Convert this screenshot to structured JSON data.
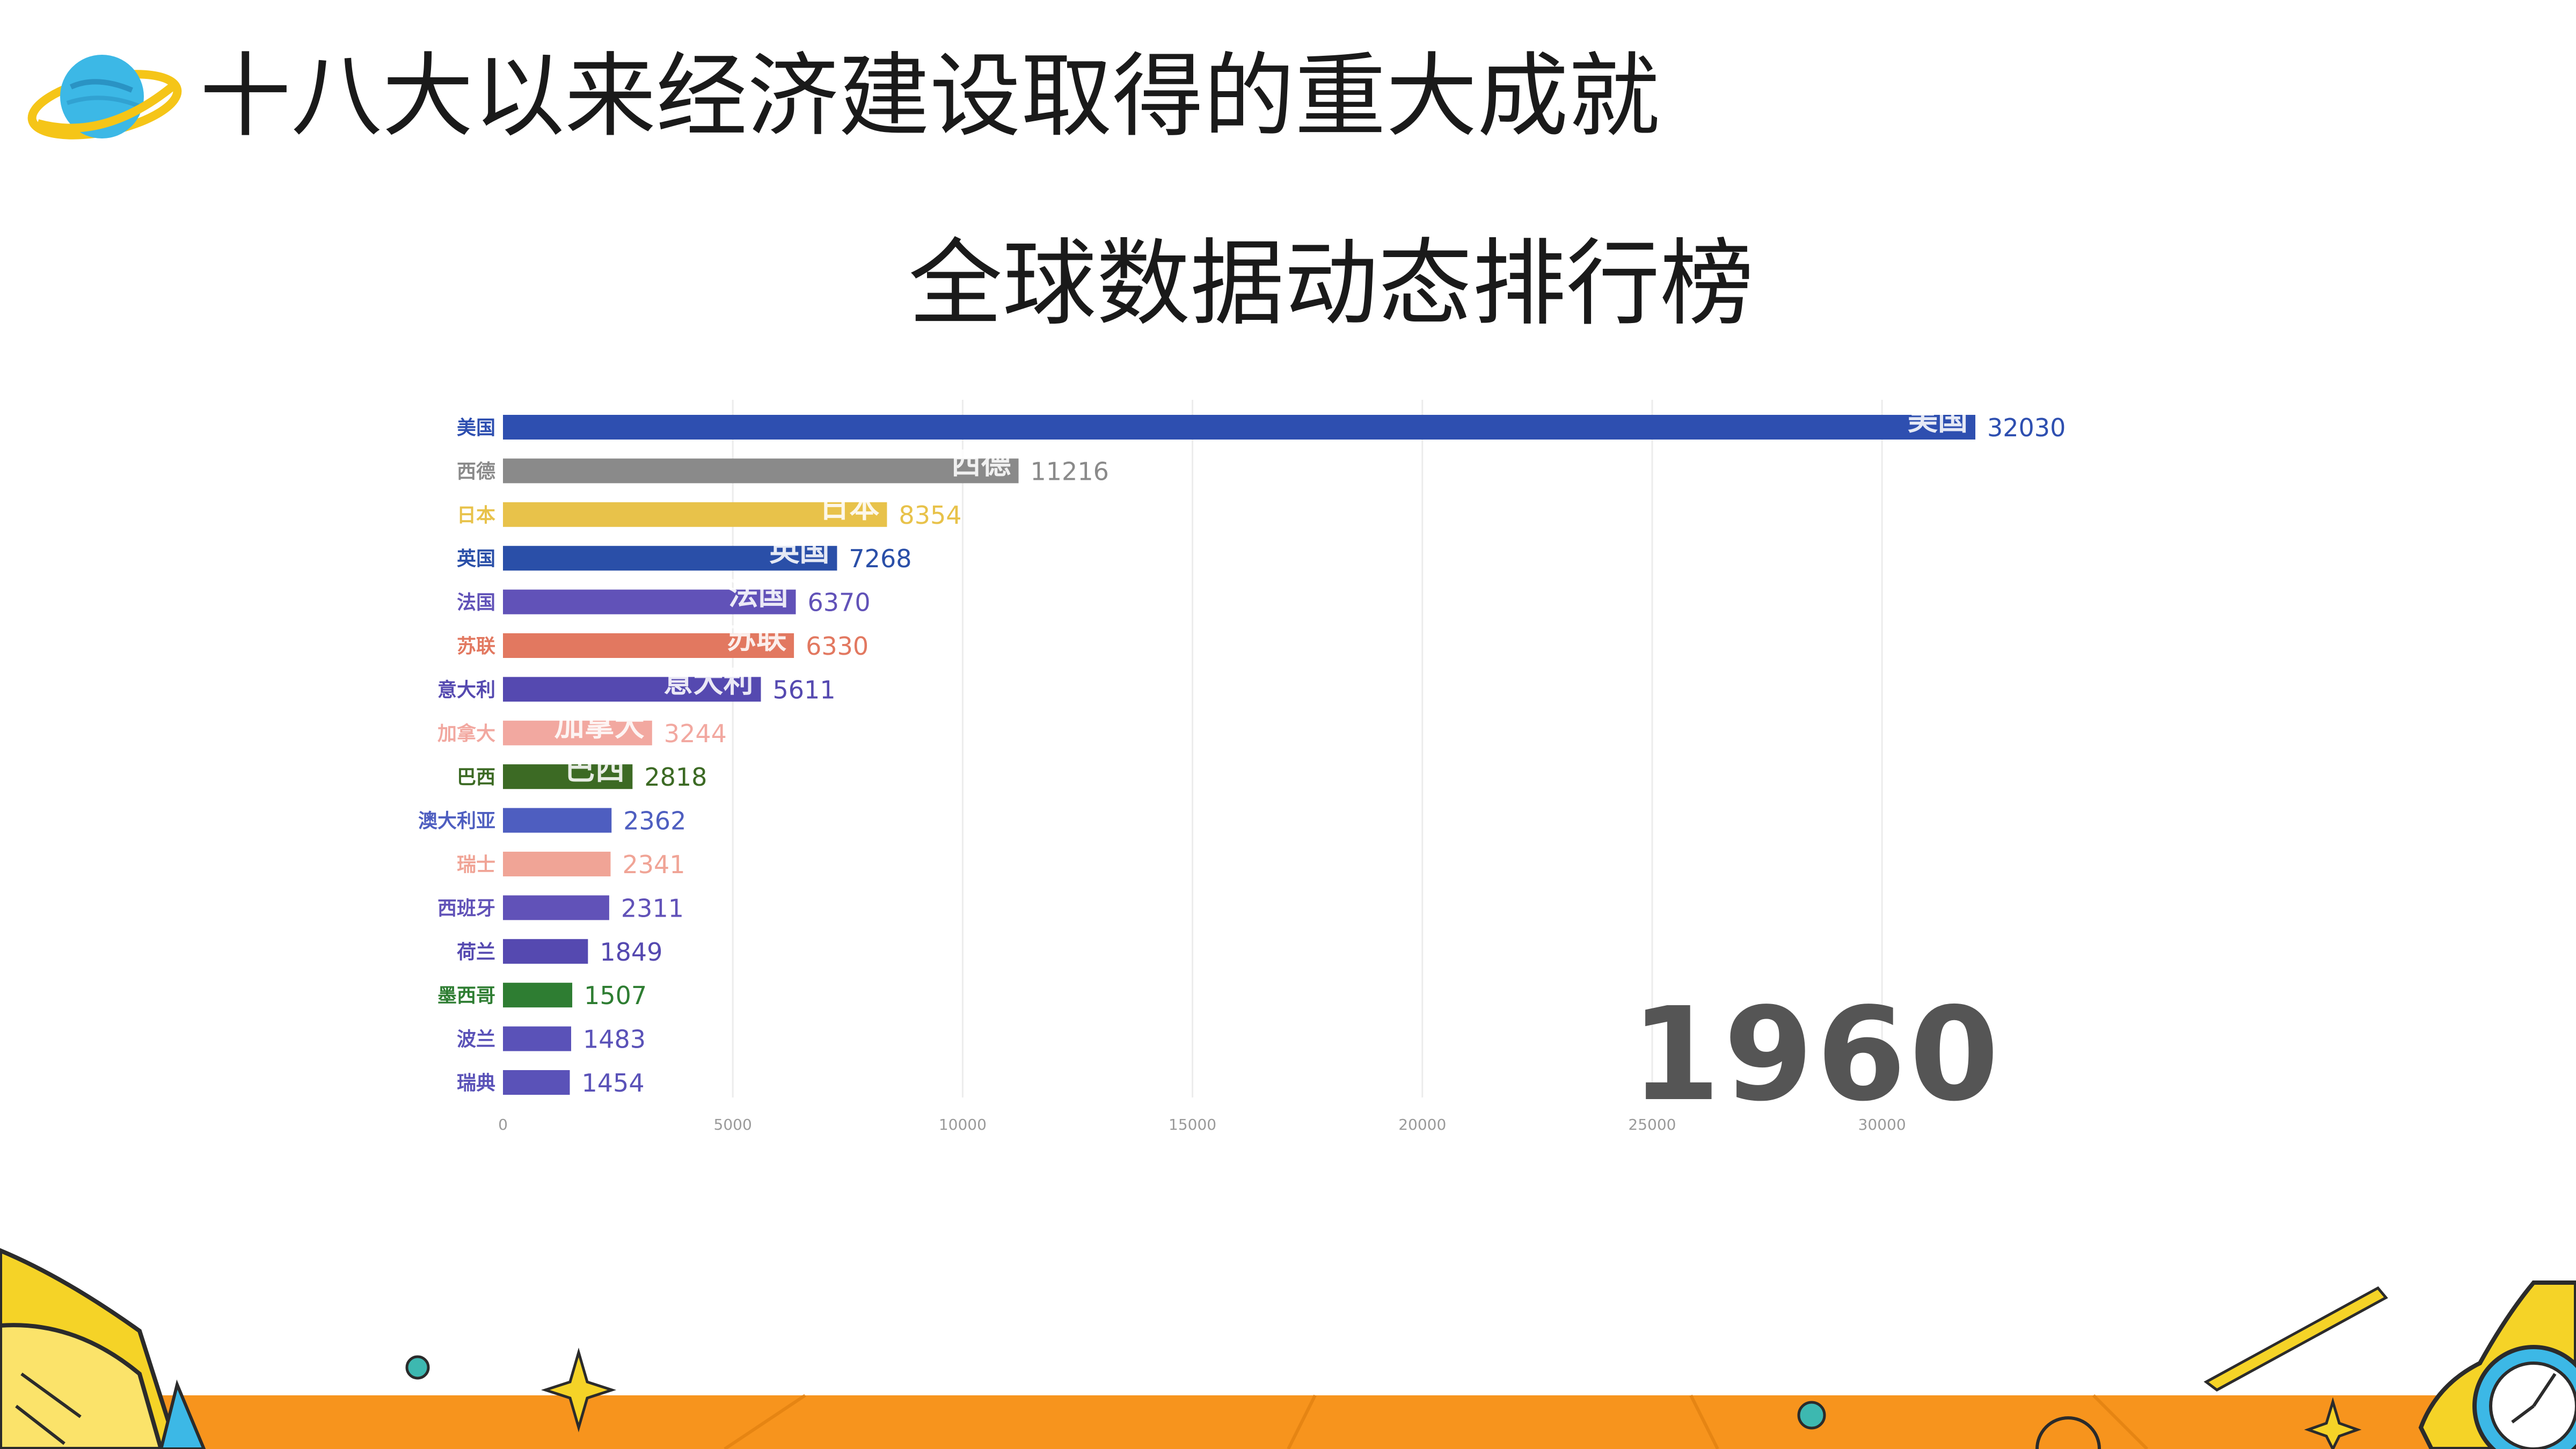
{
  "page": {
    "title": "十八大以来经济建设取得的重大成就"
  },
  "colors": {
    "footer_orange": "#f7941d",
    "accent_yellow": "#f5d327",
    "planet_blue": "#3cb8e6",
    "teal_dot": "#3db8b0"
  },
  "chart_data": {
    "type": "bar",
    "orientation": "horizontal",
    "title": "全球数据动态排行榜",
    "year_label": "1960",
    "xlim": [
      0,
      32030
    ],
    "x_ticks": [
      0,
      5000,
      10000,
      15000,
      20000,
      25000,
      30000
    ],
    "grid": true,
    "categories": [
      "美国",
      "西德",
      "日本",
      "英国",
      "法国",
      "苏联",
      "意大利",
      "加拿大",
      "巴西",
      "澳大利亚",
      "瑞士",
      "西班牙",
      "荷兰",
      "墨西哥",
      "波兰",
      "瑞典"
    ],
    "values": [
      32030,
      11216,
      8354,
      7268,
      6370,
      6330,
      5611,
      3244,
      2818,
      2362,
      2341,
      2311,
      1849,
      1507,
      1483,
      1454
    ],
    "colors": [
      "#2e4fb0",
      "#8a8a8a",
      "#e8c24a",
      "#2a4fa8",
      "#6152b8",
      "#e27860",
      "#5549b0",
      "#f2a8a0",
      "#3c6a24",
      "#4e5ec0",
      "#f0a496",
      "#6152b8",
      "#5549b0",
      "#2e7d32",
      "#5a52b8",
      "#5a52b8"
    ],
    "inbar_labels": [
      "美国",
      "西德",
      "日本",
      "英国",
      "法国",
      "苏联",
      "意大利",
      "加拿大",
      "巴西",
      "",
      "",
      "",
      "",
      "",
      "",
      ""
    ]
  }
}
